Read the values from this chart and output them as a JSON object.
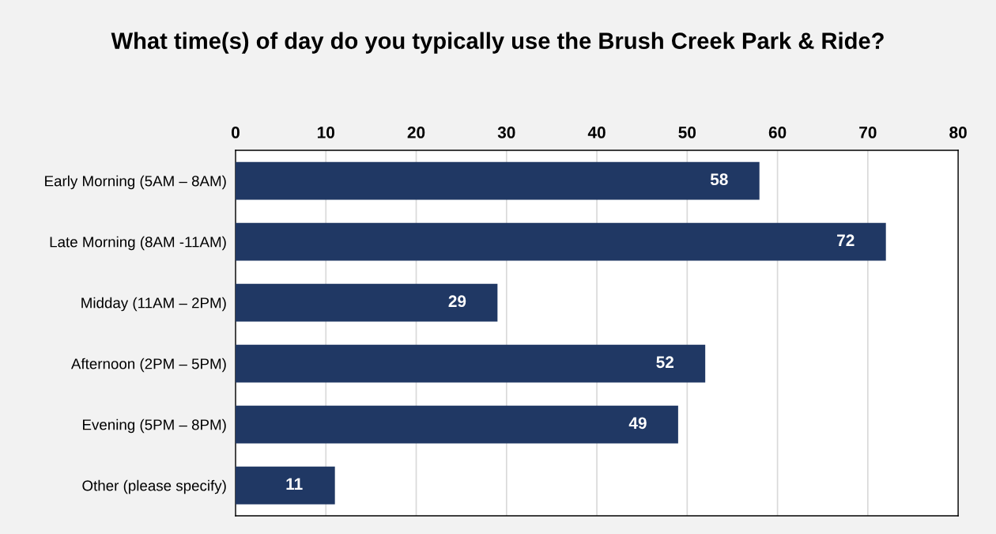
{
  "chart_data": {
    "type": "bar",
    "orientation": "horizontal",
    "title": "What time(s) of day do you typically use the Brush Creek Park & Ride?",
    "categories": [
      "Early Morning (5AM – 8AM)",
      "Late Morning (8AM -11AM)",
      "Midday (11AM – 2PM)",
      "Afternoon (2PM – 5PM)",
      "Evening (5PM – 8PM)",
      "Other (please specify)"
    ],
    "values": [
      58,
      72,
      29,
      52,
      49,
      11
    ],
    "color": "#203864",
    "xlim": [
      0,
      80
    ],
    "xticks": [
      0,
      10,
      20,
      30,
      40,
      50,
      60,
      70,
      80
    ],
    "grid": "x",
    "data_labels": true,
    "legend": false
  }
}
